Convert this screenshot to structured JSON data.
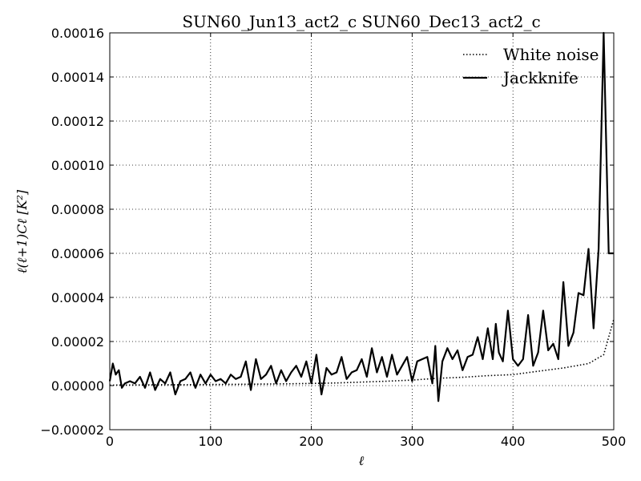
{
  "chart_data": {
    "type": "line",
    "title": "SUN60_Jun13_act2_c SUN60_Dec13_act2_c",
    "xlabel": "ℓ",
    "ylabel": "ℓ(ℓ+1)Cℓ [K²]",
    "xlim": [
      0,
      500
    ],
    "ylim": [
      -2e-05,
      0.00016
    ],
    "grid": true,
    "legend_position": "top-right",
    "x_ticks": [
      0,
      100,
      200,
      300,
      400,
      500
    ],
    "x_tick_labels": [
      "0",
      "100",
      "200",
      "300",
      "400",
      "500"
    ],
    "y_ticks": [
      -2e-05,
      0,
      2e-05,
      4e-05,
      6e-05,
      8e-05,
      0.0001,
      0.00012,
      0.00014,
      0.00016
    ],
    "y_tick_labels": [
      "−0.00002",
      "0.00000",
      "0.00002",
      "0.00004",
      "0.00006",
      "0.00008",
      "0.00010",
      "0.00012",
      "0.00014",
      "0.00016"
    ],
    "series": [
      {
        "name": "White noise",
        "style": "dotted",
        "color": "#000000",
        "x": [
          0,
          25,
          50,
          75,
          100,
          125,
          150,
          175,
          200,
          225,
          250,
          275,
          300,
          325,
          350,
          375,
          400,
          425,
          450,
          475,
          490,
          500
        ],
        "y": [
          2e-07,
          3e-07,
          4e-07,
          4e-07,
          5e-07,
          6e-07,
          7e-07,
          8e-07,
          1e-06,
          1.2e-06,
          1.6e-06,
          2e-06,
          2.5e-06,
          3.3e-06,
          3.8e-06,
          4.5e-06,
          5e-06,
          6.5e-06,
          8e-06,
          1e-05,
          1.4e-05,
          3e-05
        ]
      },
      {
        "name": "Jackknife",
        "style": "solid",
        "color": "#000000",
        "x": [
          0,
          3,
          6,
          9,
          12,
          15,
          20,
          25,
          30,
          35,
          40,
          45,
          50,
          55,
          60,
          65,
          70,
          75,
          80,
          85,
          90,
          95,
          100,
          105,
          110,
          115,
          120,
          125,
          130,
          135,
          140,
          145,
          150,
          155,
          160,
          165,
          170,
          175,
          180,
          185,
          190,
          195,
          200,
          205,
          210,
          215,
          220,
          225,
          230,
          235,
          240,
          245,
          250,
          255,
          260,
          265,
          270,
          275,
          280,
          285,
          290,
          295,
          300,
          305,
          310,
          315,
          320,
          323,
          326,
          330,
          335,
          340,
          345,
          350,
          355,
          360,
          365,
          370,
          375,
          380,
          383,
          386,
          390,
          395,
          400,
          405,
          410,
          415,
          420,
          425,
          430,
          435,
          440,
          445,
          450,
          455,
          460,
          465,
          470,
          475,
          480,
          485,
          490,
          495,
          498,
          500
        ],
        "y": [
          2e-06,
          1e-05,
          5e-06,
          7e-06,
          -1e-06,
          1e-06,
          2e-06,
          1e-06,
          4e-06,
          -1e-06,
          6e-06,
          -2e-06,
          3e-06,
          1e-06,
          6e-06,
          -4e-06,
          2e-06,
          3e-06,
          6e-06,
          -1e-06,
          5e-06,
          1e-06,
          5e-06,
          2e-06,
          3e-06,
          1e-06,
          5e-06,
          3e-06,
          4e-06,
          1.1e-05,
          -2e-06,
          1.2e-05,
          3e-06,
          5e-06,
          9e-06,
          1e-06,
          7e-06,
          2e-06,
          6e-06,
          9e-06,
          4e-06,
          1.1e-05,
          1e-06,
          1.4e-05,
          -4e-06,
          8e-06,
          5e-06,
          6e-06,
          1.3e-05,
          3e-06,
          6e-06,
          7e-06,
          1.2e-05,
          4e-06,
          1.7e-05,
          6e-06,
          1.3e-05,
          4e-06,
          1.4e-05,
          5e-06,
          9e-06,
          1.3e-05,
          2e-06,
          1.1e-05,
          1.2e-05,
          1.3e-05,
          1e-06,
          1.8e-05,
          -7e-06,
          1.1e-05,
          1.7e-05,
          1.2e-05,
          1.6e-05,
          7e-06,
          1.3e-05,
          1.4e-05,
          2.2e-05,
          1.2e-05,
          2.6e-05,
          1.2e-05,
          2.8e-05,
          1.5e-05,
          1.1e-05,
          3.4e-05,
          1.2e-05,
          9e-06,
          1.2e-05,
          3.2e-05,
          9e-06,
          1.5e-05,
          3.4e-05,
          1.6e-05,
          1.9e-05,
          1.2e-05,
          4.7e-05,
          1.8e-05,
          2.4e-05,
          4.2e-05,
          4.1e-05,
          6.2e-05,
          2.6e-05,
          6.2e-05,
          0.00016,
          6e-05,
          6e-05,
          6e-05
        ]
      }
    ]
  }
}
